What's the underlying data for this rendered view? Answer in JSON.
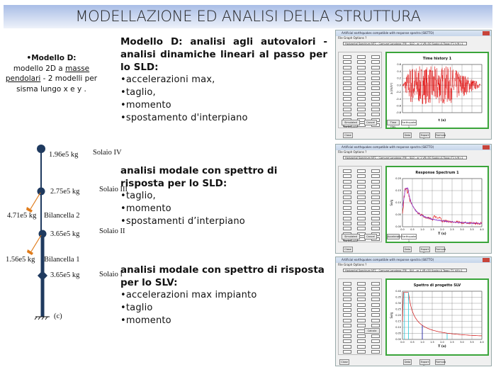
{
  "title": "MODELLAZIONE ED ANALISI DELLA STRUTTURA",
  "left_note": {
    "heading": "•Modello D:",
    "line1": "modello 2D a ",
    "link1": "masse",
    "link2": "pendolari",
    "line2": " - 2 modelli per sisma lungo x e y ."
  },
  "block1": {
    "heading": "Modello D: analisi agli autovalori - analisi dinamiche lineari al passo per lo SLD:",
    "bullets": [
      "•accelerazioni max,",
      "•taglio,",
      "•momento",
      "•spostamento d'interpiano"
    ]
  },
  "block2": {
    "heading": "analisi modale con spettro di risposta per lo SLD:",
    "bullets": [
      "•taglio,",
      "•momento",
      "•spostamenti d’interpiano"
    ]
  },
  "block3": {
    "heading": "analisi modale con spettro di risposta per lo SLV:",
    "bullets": [
      "•accelerazioni max impianto",
      "•taglio",
      "•momento"
    ]
  },
  "diagram": {
    "masses": [
      "1.96e5 kg",
      "2.75e5 kg",
      "3.65e5 kg",
      "3.65e5 kg"
    ],
    "floors": [
      "Solaio IV",
      "Solaio III",
      "Solaio II",
      "Solaio I"
    ],
    "pendulums": [
      {
        "mass": "4.71e5 kg",
        "name": "Bilancella 2"
      },
      {
        "mass": "1.56e5 kg",
        "name": "Bilancella 1"
      }
    ],
    "caption": "(c)",
    "colors": {
      "structure": "#1f3a5f",
      "pendulum": "#e07b1a"
    }
  },
  "windows": [
    {
      "title": "Artificial earthquakes compatible with response spectra (SIETTO)",
      "menu": "File   Graph Options   ?",
      "title_field": "Horizontal Spectrum NTC - Comune Longiano (FR) - SLD - ar 1 VR=50 Suolo=A Topo=T1 h/H=1",
      "chart_title": "Time history 1",
      "xlabel": "t (s)",
      "ylabel": "a (m/s²)",
      "yticks": [
        "0.6",
        "0.4",
        "0.2",
        "0.0",
        "-0.2",
        "-0.4",
        "-0.6",
        "-0.8"
      ],
      "buttons": [
        "Simulated Earthquake",
        "Cancel",
        "Close",
        "Data",
        "Export File",
        "Formula",
        "Time Hist."
      ],
      "select": "Earthquake 1",
      "curve_color": "#e00000"
    },
    {
      "title": "Artificial earthquakes compatible with response spectra (SIETTO)",
      "menu": "File   Graph Options   ?",
      "title_field": "Horizontal Spectrum NTC - Comune Longiano (FR) - SLD - ar 1 VR=50 Suolo=A Topo=T1 h/H=1",
      "chart_title": "Response Spectrum 1",
      "xlabel": "T (s)",
      "ylabel": "Se/g",
      "yticks": [
        "0.20",
        "0.15",
        "0.10",
        "0.05",
        "0.00"
      ],
      "xticks": [
        "0.0",
        "0.5",
        "1.0",
        "1.5",
        "2.0",
        "2.5",
        "3.0",
        "3.5",
        "4.0"
      ],
      "buttons": [
        "Simulated Earthquake",
        "Cancel",
        "Close",
        "Data",
        "Export File",
        "Formula",
        "Acceleration"
      ],
      "select": "Earthquake 1",
      "curve_colors": [
        "#e00000",
        "#2a2acc",
        "#b040d0"
      ]
    },
    {
      "title": "Artificial earthquakes compatible with response spectra (SIETTO)",
      "menu": "File   Graph Options   ?",
      "title_field": "Horizontal Spectrum NTC - Comune Longiano (FR) - SLV - ar 1 VR=50 Suolo=A Topo=T1 h/H=1",
      "chart_title": "Spettro di progetto SLV",
      "xlabel": "T (s)",
      "ylabel": "Se/g",
      "yticks": [
        "0.40",
        "0.35",
        "0.30",
        "0.25",
        "0.20",
        "0.15",
        "0.10",
        "0.05",
        "0.00"
      ],
      "xticks": [
        "0.0",
        "0.5",
        "1.0",
        "1.5",
        "2.0",
        "2.5",
        "3.0",
        "3.5",
        "4.0"
      ],
      "buttons": [
        "Calcola",
        "Close",
        "Data",
        "Export File",
        "Formula"
      ],
      "curve_colors": [
        "#d01010",
        "#20c8d8",
        "#1010a0"
      ]
    }
  ]
}
